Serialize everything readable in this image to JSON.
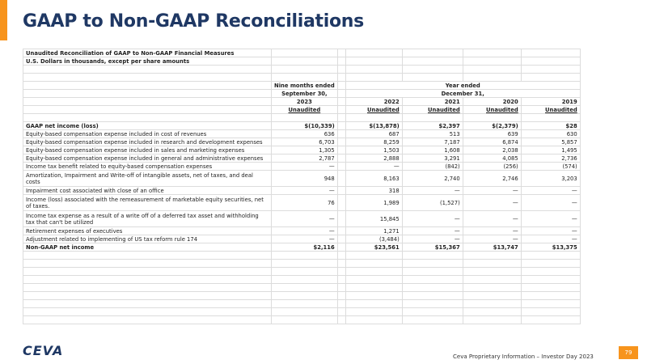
{
  "header": {
    "title": "GAAP to Non-GAAP Reconciliations"
  },
  "table": {
    "caption": [
      "Unaudited Reconciliation of GAAP to Non-GAAP Financial Measures",
      "U.S. Dollars in thousands, except per share amounts"
    ],
    "period_headers": [
      "Nine months  ended",
      "Year ended"
    ],
    "date_headers": [
      "September 30,",
      "December 31,"
    ],
    "years": [
      "2023",
      "2022",
      "2021",
      "2020",
      "2019"
    ],
    "audit": [
      "Unaudited",
      "Unaudited",
      "Unaudited",
      "Unaudited",
      "Unaudited"
    ],
    "rows": [
      {
        "label": "GAAP net income (loss)",
        "values": [
          "$(10,339)",
          "$(13,878)",
          "$2,397",
          "$(2,379)",
          "$28"
        ]
      },
      {
        "label": "Equity-based compensation expense included in cost of revenues",
        "values": [
          "636",
          "687",
          "513",
          "639",
          "630"
        ]
      },
      {
        "label": "Equity-based compensation expense included in research and development expenses",
        "values": [
          "6,703",
          "8,259",
          "7,187",
          "6,874",
          "5,857"
        ]
      },
      {
        "label": "Equity-based compensation expense included in sales and marketing expenses",
        "values": [
          "1,305",
          "1,503",
          "1,608",
          "2,038",
          "1,495"
        ]
      },
      {
        "label": "Equity-based compensation expense included in general and administrative expenses",
        "values": [
          "2,787",
          "2,888",
          "3,291",
          "4,085",
          "2,736"
        ]
      },
      {
        "label": "Income tax benefit related to equity-based compensation expenses",
        "values": [
          "—",
          "—",
          "(842)",
          "(256)",
          "(574)"
        ]
      },
      {
        "label": "Amortization, Impairment and Write-off of intangible assets, net of taxes, and deal costs",
        "values": [
          "948",
          "8,163",
          "2,740",
          "2,746",
          "3,203"
        ]
      },
      {
        "label": "Impairment cost associated with close of an office",
        "values": [
          "—",
          "318",
          "—",
          "—",
          "—"
        ]
      },
      {
        "label": "Income (loss) associated with the remeasurement of marketable equity securities, net of taxes.",
        "values": [
          "76",
          "1,989",
          "(1,527)",
          "—",
          "—"
        ]
      },
      {
        "label": "Income tax expense as a result of a write off of a deferred tax asset and withholding tax that can't be utilized",
        "values": [
          "—",
          "15,845",
          "—",
          "—",
          "—"
        ]
      },
      {
        "label": "Retirement expenses of executives",
        "values": [
          "—",
          "1,271",
          "—",
          "—",
          "—"
        ]
      },
      {
        "label": "Adjustment related to implementing of US tax reform rule 174",
        "values": [
          "—",
          "(3,484)",
          "—",
          "—",
          "—"
        ]
      },
      {
        "label": "Non-GAAP net income",
        "values": [
          "$2,116",
          "$23,561",
          "$15,367",
          "$13,747",
          "$13,375"
        ]
      }
    ]
  },
  "footer": {
    "logo": "CEVA",
    "text": "Ceva Proprietary Information – Investor Day 2023",
    "page": "79"
  }
}
